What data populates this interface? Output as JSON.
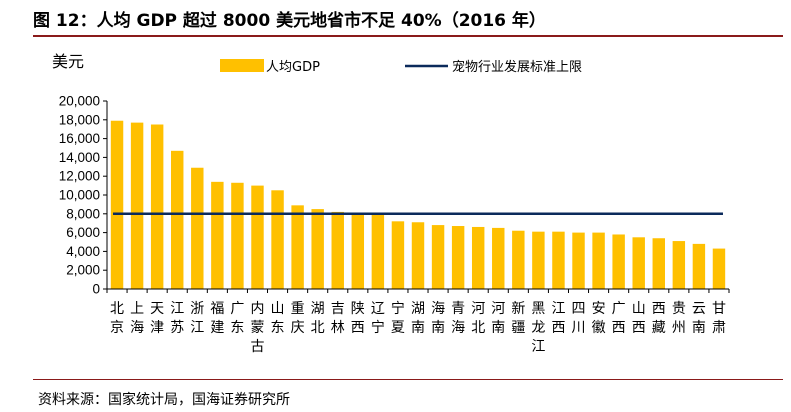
{
  "title": "图 12：人均 GDP 超过 8000 美元地省市不足 40%（2016 年）",
  "source": "资料来源：国家统计局，国海证券研究所",
  "colors": {
    "bar": "#FFC000",
    "line": "#0B2A5B",
    "rule": "#8A1A1A"
  },
  "chart_data": {
    "type": "bar",
    "ylabel": "美元",
    "ylim": [
      0,
      20000
    ],
    "yticks": [
      0,
      2000,
      4000,
      6000,
      8000,
      10000,
      12000,
      14000,
      16000,
      18000,
      20000
    ],
    "ytick_labels": [
      "0",
      "2,000",
      "4,000",
      "6,000",
      "8,000",
      "10,000",
      "12,000",
      "14,000",
      "16,000",
      "18,000",
      "20,000"
    ],
    "grid": false,
    "legend_position": "top",
    "categories": [
      "北京",
      "上海",
      "天津",
      "江苏",
      "浙江",
      "福建",
      "广东",
      "内蒙古",
      "山东",
      "重庆",
      "湖北",
      "吉林",
      "陕西",
      "辽宁",
      "宁夏",
      "湖南",
      "海南",
      "青海",
      "河北",
      "河南",
      "新疆",
      "黑龙江",
      "江西",
      "四川",
      "安徽",
      "广西",
      "山西",
      "西藏",
      "贵州",
      "云南",
      "甘肃"
    ],
    "series": [
      {
        "name": "人均GDP",
        "type": "bar",
        "values": [
          17900,
          17700,
          17500,
          14700,
          12900,
          11400,
          11300,
          11000,
          10500,
          8900,
          8500,
          8200,
          7900,
          7900,
          7200,
          7100,
          6800,
          6700,
          6600,
          6500,
          6200,
          6100,
          6100,
          6000,
          6000,
          5800,
          5500,
          5400,
          5100,
          4800,
          4300
        ]
      },
      {
        "name": "宠物行业发展标准上限",
        "type": "line",
        "value": 8000
      }
    ]
  }
}
